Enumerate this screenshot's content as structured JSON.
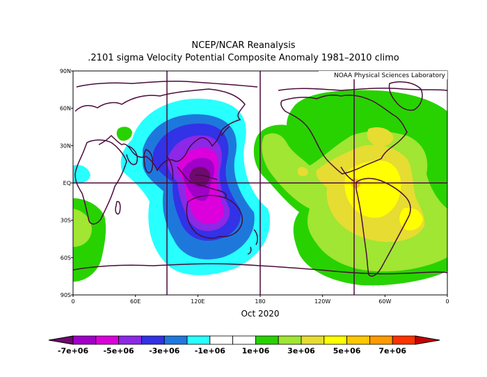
{
  "title": "NCEP/NCAR Reanalysis",
  "subtitle": ".2101 sigma Velocity Potential  Composite Anomaly 1981–2010 climo",
  "credit": "NOAA Physical Sciences Laboratory",
  "period_label": "Oct 2020",
  "lat_labels": [
    "90N",
    "60N",
    "30N",
    "EQ",
    "30S",
    "60S",
    "90S"
  ],
  "lon_labels": [
    "0",
    "60E",
    "120E",
    "180",
    "120W",
    "60W",
    "0"
  ],
  "colorbar": {
    "colors": [
      "#6e0a6e",
      "#a000c8",
      "#dc00dc",
      "#8c28e6",
      "#3232e6",
      "#1e78dc",
      "#28ffff",
      "#ffffff",
      "#ffffff",
      "#28d200",
      "#a0e632",
      "#e6dc32",
      "#ffff00",
      "#ffc800",
      "#ff9b00",
      "#ff3200",
      "#c80000"
    ],
    "labels": [
      "-7e+06",
      "-5e+06",
      "-3e+06",
      "-1e+06",
      "1e+06",
      "3e+06",
      "5e+06",
      "7e+06"
    ]
  }
}
